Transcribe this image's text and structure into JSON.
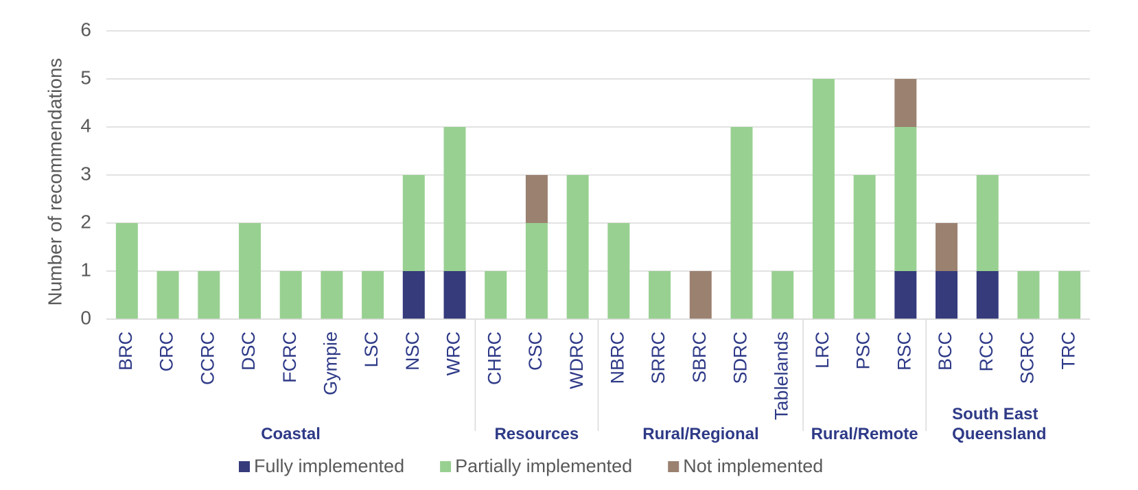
{
  "chart_data": {
    "type": "stacked_bar",
    "y_label": "Number of recommendations",
    "groups": [
      {
        "label": "Coastal",
        "categories": [
          "BRC",
          "CRC",
          "CCRC",
          "DSC",
          "FCRC",
          "Gympie",
          "LSC",
          "NSC",
          "WRC"
        ]
      },
      {
        "label": "Resources",
        "categories": [
          "CHRC",
          "CSC",
          "WDRC"
        ]
      },
      {
        "label": "Rural/Regional",
        "categories": [
          "NBRC",
          "SRRC",
          "SBRC",
          "SDRC",
          "Tablelands"
        ]
      },
      {
        "label": "Rural/Remote",
        "categories": [
          "LRC",
          "PSC",
          "RSC"
        ]
      },
      {
        "label": "South East Queensland",
        "categories": [
          "BCC",
          "RCC",
          "SCRC",
          "TRC"
        ]
      }
    ],
    "series": [
      {
        "name": "Fully implemented",
        "color": "#353b7b",
        "values": [
          0,
          0,
          0,
          0,
          0,
          0,
          0,
          1,
          1,
          0,
          0,
          0,
          0,
          0,
          0,
          0,
          0,
          0,
          0,
          1,
          1,
          1,
          0,
          0
        ]
      },
      {
        "name": "Partially implemented",
        "color": "#98d091",
        "values": [
          2,
          1,
          1,
          2,
          1,
          1,
          1,
          2,
          3,
          1,
          2,
          3,
          2,
          1,
          0,
          4,
          1,
          5,
          3,
          3,
          0,
          2,
          1,
          1
        ]
      },
      {
        "name": "Not implemented",
        "color": "#9b8170",
        "values": [
          0,
          0,
          0,
          0,
          0,
          0,
          0,
          0,
          0,
          0,
          1,
          0,
          0,
          0,
          1,
          0,
          0,
          0,
          0,
          1,
          1,
          0,
          0,
          0
        ]
      }
    ],
    "ylim": [
      0,
      6
    ],
    "yticks": [
      0,
      1,
      2,
      3,
      4,
      5,
      6
    ],
    "grid": true,
    "legend": "bottom"
  }
}
